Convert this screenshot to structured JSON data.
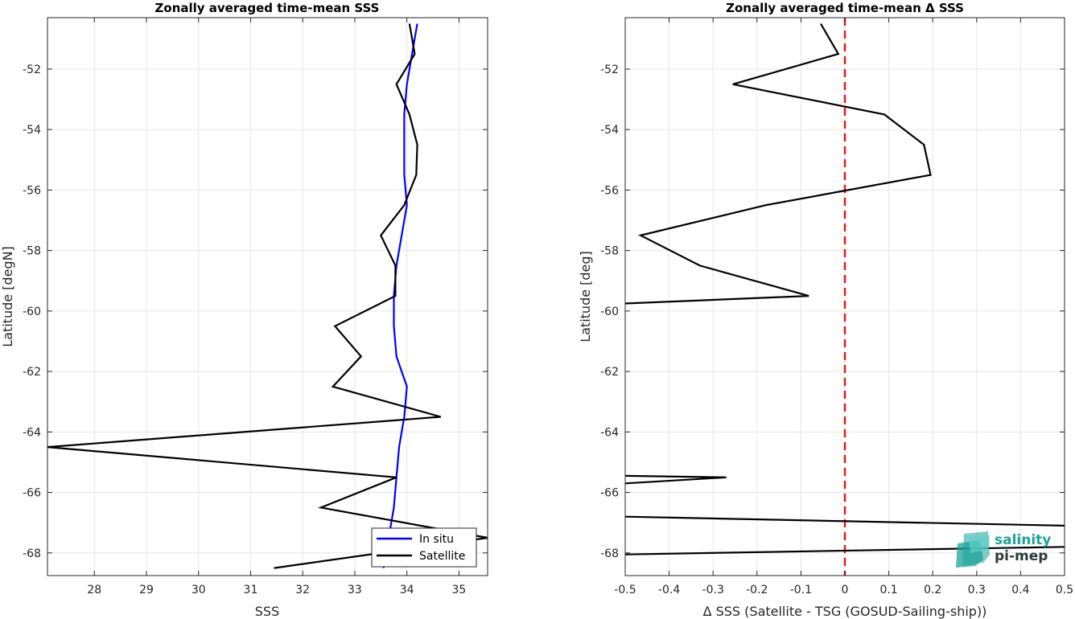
{
  "colors": {
    "insitu": "#0000ff",
    "satellite": "#000000",
    "zero_line": "#e21b1b",
    "grid": "#e6e6e6",
    "logo_teal": "#1aa39a",
    "logo_dark": "#2b3a3a"
  },
  "logo": {
    "line1": "salinity",
    "line2": "pi-mep"
  },
  "chart_data": [
    {
      "type": "line",
      "title": "Zonally averaged time-mean SSS",
      "xlabel": "SSS",
      "ylabel": "Latitude [degN]",
      "xlim": [
        27.1,
        35.55
      ],
      "ylim": [
        -68.75,
        -50.3
      ],
      "xticks": [
        28,
        29,
        30,
        31,
        32,
        33,
        34,
        35
      ],
      "xtick_labels": [
        "28",
        "29",
        "30",
        "31",
        "32",
        "33",
        "34",
        "35"
      ],
      "yticks": [
        -52,
        -54,
        -56,
        -58,
        -60,
        -62,
        -64,
        -66,
        -68
      ],
      "ytick_labels": [
        "-52",
        "-54",
        "-56",
        "-58",
        "-60",
        "-62",
        "-64",
        "-66",
        "-68"
      ],
      "grid": true,
      "legend_position": "bottom-right",
      "series": [
        {
          "name": "In situ",
          "color": "#0000ff",
          "points": [
            [
              34.2,
              -50.5
            ],
            [
              34.1,
              -51.5
            ],
            [
              34.0,
              -52.5
            ],
            [
              33.95,
              -53.5
            ],
            [
              33.95,
              -54.5
            ],
            [
              33.95,
              -55.5
            ],
            [
              34.0,
              -56.5
            ],
            [
              33.9,
              -57.5
            ],
            [
              33.8,
              -58.5
            ],
            [
              33.75,
              -59.5
            ],
            [
              33.75,
              -60.5
            ],
            [
              33.8,
              -61.5
            ],
            [
              34.0,
              -62.5
            ],
            [
              33.95,
              -63.5
            ],
            [
              33.85,
              -64.5
            ],
            [
              33.8,
              -65.5
            ],
            [
              33.75,
              -66.5
            ],
            [
              33.65,
              -67.5
            ],
            [
              33.55,
              -68.5
            ]
          ]
        },
        {
          "name": "Satellite",
          "color": "#000000",
          "points": [
            [
              34.05,
              -50.5
            ],
            [
              34.15,
              -51.5
            ],
            [
              33.8,
              -52.5
            ],
            [
              34.05,
              -53.5
            ],
            [
              34.2,
              -54.5
            ],
            [
              34.18,
              -55.5
            ],
            [
              33.95,
              -56.5
            ],
            [
              33.5,
              -57.5
            ],
            [
              33.78,
              -58.5
            ],
            [
              33.78,
              -59.5
            ],
            [
              32.62,
              -60.5
            ],
            [
              33.12,
              -61.5
            ],
            [
              32.58,
              -62.5
            ],
            [
              34.65,
              -63.5
            ],
            [
              27.1,
              -64.5
            ],
            [
              33.8,
              -65.5
            ],
            [
              32.35,
              -66.5
            ],
            [
              35.55,
              -67.5
            ],
            [
              31.45,
              -68.5
            ]
          ]
        }
      ]
    },
    {
      "type": "line",
      "title": "Zonally averaged time-mean Δ SSS",
      "xlabel": "Δ SSS (Satellite - TSG (GOSUD-Sailing-ship))",
      "ylabel": "Latitude [deg]",
      "xlim": [
        -0.5,
        0.5
      ],
      "ylim": [
        -68.75,
        -50.3
      ],
      "xticks": [
        -0.5,
        -0.4,
        -0.3,
        -0.2,
        -0.1,
        0,
        0.1,
        0.2,
        0.3,
        0.4,
        0.5
      ],
      "xtick_labels": [
        "-0.5",
        "-0.4",
        "-0.3",
        "-0.2",
        "-0.1",
        "0",
        "0.1",
        "0.2",
        "0.3",
        "0.4",
        "0.5"
      ],
      "yticks": [
        -52,
        -54,
        -56,
        -58,
        -60,
        -62,
        -64,
        -66,
        -68
      ],
      "ytick_labels": [
        "-52",
        "-54",
        "-56",
        "-58",
        "-60",
        "-62",
        "-64",
        "-66",
        "-68"
      ],
      "grid": true,
      "zero_line": {
        "x": 0,
        "color": "#e21b1b",
        "style": "dashed"
      },
      "series": [
        {
          "name": "",
          "color": "#000000",
          "points": [
            [
              -0.055,
              -50.5
            ],
            [
              -0.015,
              -51.5
            ],
            [
              -0.255,
              -52.5
            ],
            [
              0.09,
              -53.5
            ],
            [
              0.18,
              -54.5
            ],
            [
              0.195,
              -55.5
            ],
            [
              -0.18,
              -56.5
            ],
            [
              -0.465,
              -57.5
            ],
            [
              -0.33,
              -58.5
            ],
            [
              -0.082,
              -59.5
            ],
            [
              -0.5,
              -59.75
            ]
          ]
        },
        {
          "name": "",
          "color": "#000000",
          "points": [
            [
              -0.5,
              -65.45
            ],
            [
              -0.27,
              -65.5
            ],
            [
              -0.5,
              -65.7
            ]
          ]
        },
        {
          "name": "",
          "color": "#000000",
          "points": [
            [
              -0.5,
              -66.8
            ],
            [
              0.5,
              -67.1
            ]
          ]
        },
        {
          "name": "",
          "color": "#000000",
          "points": [
            [
              -0.5,
              -68.05
            ],
            [
              0.5,
              -67.8
            ]
          ]
        }
      ]
    }
  ]
}
